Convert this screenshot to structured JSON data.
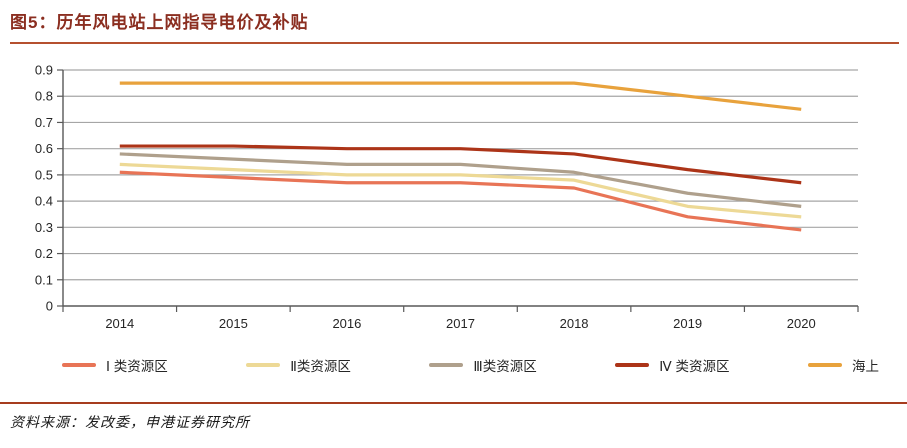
{
  "title": {
    "text": "图5：历年风电站上网指导电价及补贴"
  },
  "source": {
    "text": "资料来源：发改委，申港证券研究所"
  },
  "colors": {
    "title_text": "#8B2E20",
    "title_rule": "#B5502F",
    "source_rule": "#A63C1E",
    "gridline": "#A6A6A6",
    "axis": "#595959",
    "tick_text": "#262626"
  },
  "chart_data": {
    "type": "line",
    "title": "历年风电站上网指导电价及补贴",
    "xlabel": "",
    "ylabel": "",
    "categories": [
      "2014",
      "2015",
      "2016",
      "2017",
      "2018",
      "2019",
      "2020"
    ],
    "series": [
      {
        "name": "Ⅰ 类资源区",
        "color": "#E87456",
        "values": [
          0.51,
          0.49,
          0.47,
          0.47,
          0.45,
          0.34,
          0.29
        ]
      },
      {
        "name": "Ⅱ类资源区",
        "color": "#EDD996",
        "values": [
          0.54,
          0.52,
          0.5,
          0.5,
          0.48,
          0.38,
          0.34
        ]
      },
      {
        "name": "Ⅲ类资源区",
        "color": "#AFA08C",
        "values": [
          0.58,
          0.56,
          0.54,
          0.54,
          0.51,
          0.43,
          0.38
        ]
      },
      {
        "name": "Ⅳ 类资源区",
        "color": "#AC3418",
        "values": [
          0.61,
          0.61,
          0.6,
          0.6,
          0.58,
          0.52,
          0.47
        ]
      },
      {
        "name": "海上",
        "color": "#E8A23C",
        "values": [
          0.85,
          0.85,
          0.85,
          0.85,
          0.85,
          0.8,
          0.75
        ]
      }
    ],
    "ylim": [
      0,
      0.9
    ],
    "ytick": 0.1,
    "grid": true,
    "legend_position": "bottom"
  }
}
